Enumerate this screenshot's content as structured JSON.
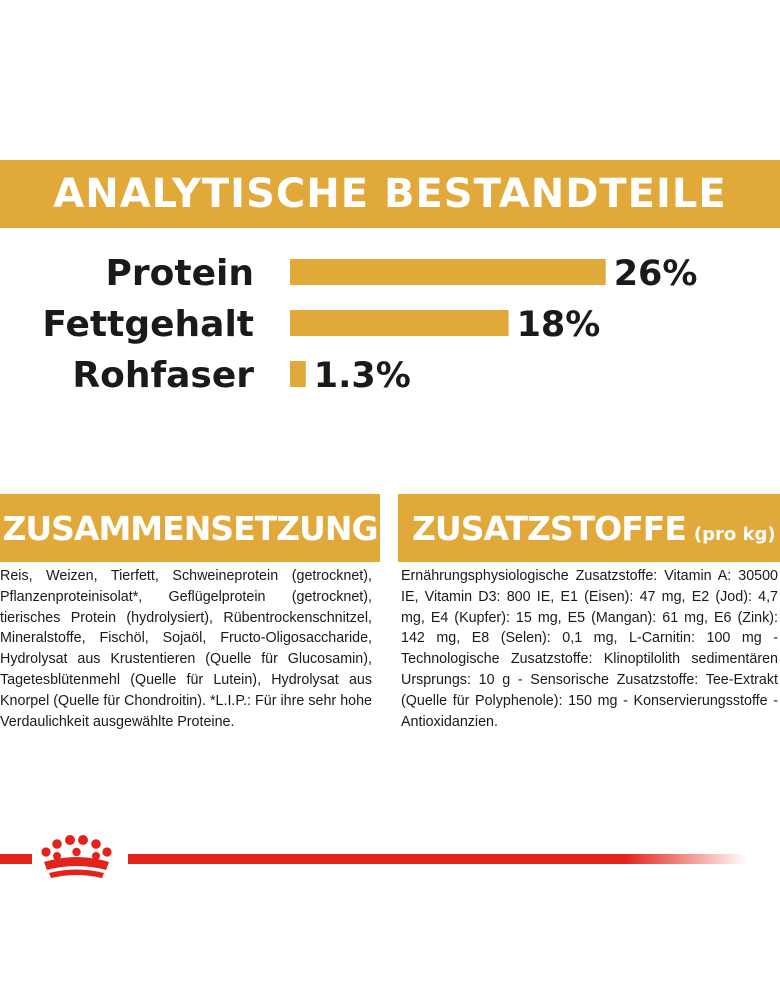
{
  "analytic_title": "ANALYTISCHE BESTANDTEILE",
  "chart_data": {
    "type": "bar",
    "orientation": "horizontal",
    "categories": [
      "Protein",
      "Fettgehalt",
      "Rohfaser"
    ],
    "values": [
      26,
      18,
      1.3
    ],
    "value_labels": [
      "26%",
      "18%",
      "1.3%"
    ],
    "unit": "%",
    "xlim": [
      0,
      28
    ],
    "grid": false,
    "legend": "none",
    "colors": {
      "bar": "#e0a93a",
      "text": "#1a1a1a"
    }
  },
  "composition": {
    "title": "ZUSAMMENSETZUNG",
    "text": "Reis, Weizen, Tierfett, Schweineprotein (getrocknet), Pflanzenproteinisolat*, Geflügelprotein (getrocknet), tierisches Protein (hydrolysiert), Rübentrockenschnitzel, Mineralstoffe, Fischöl, Sojaöl, Fructo-Oligosaccharide, Hydrolysat aus Krustentieren (Quelle für Glucosamin), Tagetesblütenmehl (Quelle für Lutein), Hydrolysat aus Knorpel (Quelle für Chondroitin). *L.I.P.: Für ihre sehr hohe Verdaulichkeit ausgewählte Proteine."
  },
  "additives": {
    "title": "ZUSATZSTOFFE",
    "unit_label": "(pro kg)",
    "text": "Ernährungsphysiologische Zusatzstoffe: Vitamin A: 30500 IE, Vitamin D3: 800 IE, E1 (Eisen): 47 mg, E2 (Jod): 4,7 mg, E4 (Kupfer): 15 mg, E5 (Mangan): 61 mg, E6 (Zink): 142 mg, E8 (Selen): 0,1 mg, L-Carnitin: 100 mg - Technologische Zusatzstoffe: Klinoptilolith sedimentären Ursprungs: 10 g - Sensorische Zusatzstoffe: Tee-Extrakt (Quelle für Polyphenole): 150 mg - Konservierungsstoffe - Antioxidanzien."
  },
  "brand": {
    "crown_color": "#e2231a",
    "line_color": "#e2231a",
    "icon": "crown-logo"
  }
}
